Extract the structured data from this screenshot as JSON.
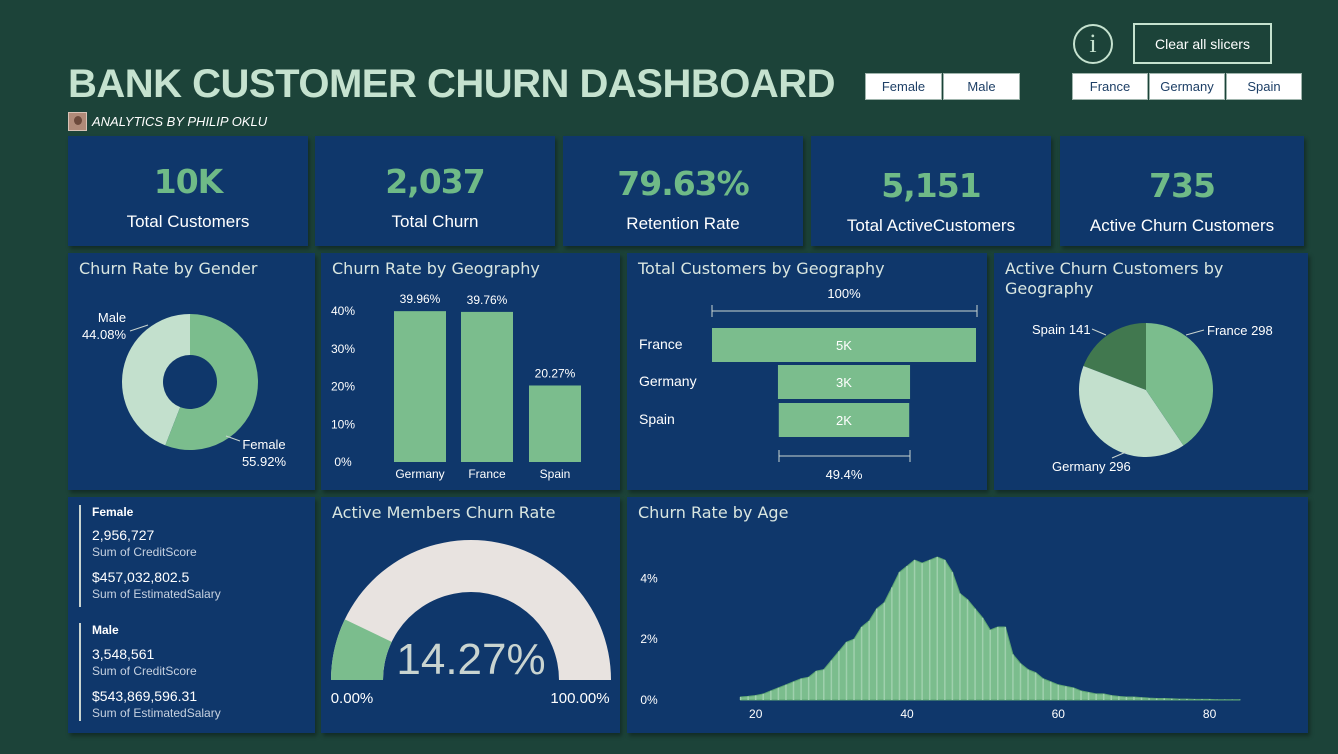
{
  "header": {
    "title": "BANK CUSTOMER CHURN DASHBOARD",
    "subtitle": "ANALYTICS BY PHILIP OKLU",
    "info_glyph": "i",
    "clear_label": "Clear all slicers"
  },
  "slicers": {
    "gender": [
      "Female",
      "Male"
    ],
    "geography": [
      "France",
      "Germany",
      "Spain"
    ]
  },
  "kpis": [
    {
      "value": "10K",
      "label": "Total Customers"
    },
    {
      "value": "2,037",
      "label": "Total Churn"
    },
    {
      "value": "79.63%",
      "label": "Retention Rate"
    },
    {
      "value": "5,151",
      "label": "Total ActiveCustomers"
    },
    {
      "value": "735",
      "label": "Active Churn Customers"
    }
  ],
  "colors": {
    "background": "#1c4339",
    "card": "#0f376b",
    "green": "#7bbd8d",
    "light_green": "#c3e0cd",
    "dark_green": "#41784f",
    "gauge_track": "#e8e3e0",
    "title_text": "#c5e2cf"
  },
  "gender_stats": {
    "female": {
      "title": "Female",
      "credit": "2,956,727",
      "credit_label": "Sum of CreditScore",
      "salary": "$457,032,802.5",
      "salary_label": "Sum of EstimatedSalary"
    },
    "male": {
      "title": "Male",
      "credit": "3,548,561",
      "credit_label": "Sum of CreditScore",
      "salary": "$543,869,596.31",
      "salary_label": "Sum of EstimatedSalary"
    }
  },
  "gauge": {
    "title": "Active Members Churn Rate",
    "value_label": "14.27%",
    "min_label": "0.00%",
    "max_label": "100.00%"
  },
  "chart_data": [
    {
      "type": "pie",
      "variant": "donut",
      "title": "Churn Rate by Gender",
      "slices": [
        {
          "label": "Female",
          "value": 55.92,
          "display": "55.92%",
          "color": "#7bbd8d"
        },
        {
          "label": "Male",
          "value": 44.08,
          "display": "44.08%",
          "color": "#c3e0cd"
        }
      ]
    },
    {
      "type": "bar",
      "title": "Churn Rate by Geography",
      "categories": [
        "Germany",
        "France",
        "Spain"
      ],
      "values": [
        39.96,
        39.76,
        20.27
      ],
      "data_labels": [
        "39.96%",
        "39.76%",
        "20.27%"
      ],
      "yticks": [
        "0%",
        "10%",
        "20%",
        "30%",
        "40%"
      ],
      "ylim": [
        0,
        40
      ],
      "color": "#7bbd8d"
    },
    {
      "type": "bar",
      "variant": "funnel",
      "title": "Total Customers by Geography",
      "categories": [
        "France",
        "Germany",
        "Spain"
      ],
      "values": [
        5014,
        2509,
        2477
      ],
      "data_labels": [
        "5K",
        "3K",
        "2K"
      ],
      "top_label": "100%",
      "bottom_label": "49.4%",
      "color": "#7bbd8d"
    },
    {
      "type": "pie",
      "title": "Active Churn Customers by Geography",
      "slices": [
        {
          "label": "France",
          "value": 298,
          "display": "France 298",
          "color": "#7bbd8d"
        },
        {
          "label": "Germany",
          "value": 296,
          "display": "Germany 296",
          "color": "#c3e0cd"
        },
        {
          "label": "Spain",
          "value": 141,
          "display": "Spain 141",
          "color": "#41784f"
        }
      ]
    },
    {
      "type": "area",
      "title": "Churn Rate by Age",
      "x_ticks": [
        "20",
        "40",
        "60",
        "80"
      ],
      "y_ticks": [
        "0%",
        "2%",
        "4%"
      ],
      "xlim": [
        17,
        86
      ],
      "ylim": [
        0,
        4.7
      ],
      "x": [
        18,
        19,
        20,
        21,
        22,
        23,
        24,
        25,
        26,
        27,
        28,
        29,
        30,
        31,
        32,
        33,
        34,
        35,
        36,
        37,
        38,
        39,
        40,
        41,
        42,
        43,
        44,
        45,
        46,
        47,
        48,
        49,
        50,
        51,
        52,
        53,
        54,
        55,
        56,
        57,
        58,
        59,
        60,
        61,
        62,
        63,
        64,
        65,
        66,
        67,
        68,
        69,
        70,
        71,
        72,
        73,
        74,
        75,
        76,
        77,
        78,
        79,
        80,
        81,
        82,
        83,
        84
      ],
      "values": [
        0.1,
        0.12,
        0.15,
        0.2,
        0.3,
        0.4,
        0.5,
        0.6,
        0.7,
        0.75,
        0.95,
        1.0,
        1.3,
        1.6,
        1.9,
        2.0,
        2.4,
        2.6,
        3.0,
        3.2,
        3.7,
        4.2,
        4.4,
        4.6,
        4.5,
        4.6,
        4.7,
        4.6,
        4.2,
        3.5,
        3.3,
        3.0,
        2.7,
        2.3,
        2.4,
        2.4,
        1.5,
        1.2,
        1.0,
        0.9,
        0.7,
        0.6,
        0.5,
        0.45,
        0.4,
        0.3,
        0.25,
        0.2,
        0.2,
        0.15,
        0.12,
        0.1,
        0.1,
        0.08,
        0.06,
        0.05,
        0.05,
        0.04,
        0.03,
        0.03,
        0.02,
        0.02,
        0.02,
        0.01,
        0.01,
        0.01,
        0.01
      ],
      "color": "#7bbd8d"
    }
  ]
}
